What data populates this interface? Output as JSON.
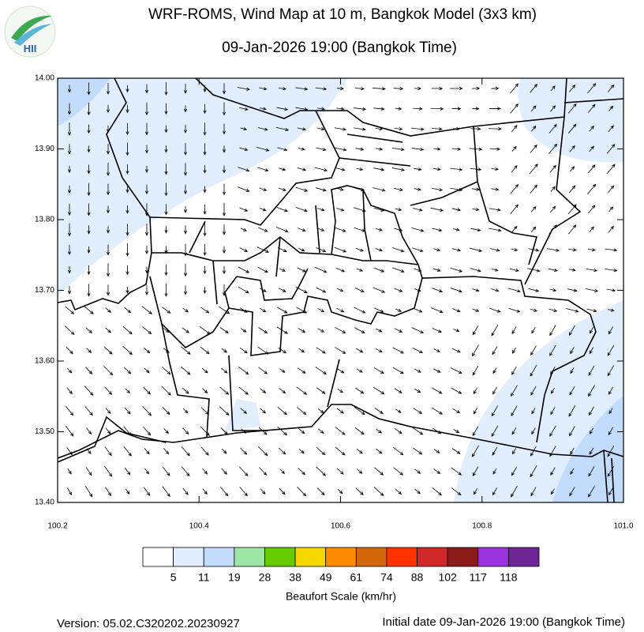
{
  "header": {
    "title": "WRF-ROMS, Wind Map at 10 m, Bangkok Model (3x3 km)",
    "subtitle": "09-Jan-2026 19:00 (Bangkok Time)",
    "logo": "HII"
  },
  "map": {
    "lon_ticks": [
      {
        "value": 100.2,
        "label": "100.2"
      },
      {
        "value": 100.4,
        "label": "100.4"
      },
      {
        "value": 100.6,
        "label": "100.6"
      },
      {
        "value": 100.8,
        "label": "100.8"
      },
      {
        "value": 101.0,
        "label": "101.0"
      }
    ],
    "lat_ticks": [
      {
        "value": 14.0,
        "label": "14.00"
      },
      {
        "value": 13.9,
        "label": "13.90"
      },
      {
        "value": 13.8,
        "label": "13.80"
      },
      {
        "value": 13.7,
        "label": "13.70"
      },
      {
        "value": 13.6,
        "label": "13.60"
      },
      {
        "value": 13.5,
        "label": "13.50"
      },
      {
        "value": 13.4,
        "label": "13.40"
      }
    ]
  },
  "legend": {
    "title": "Beaufort Scale (km/hr)",
    "colors": [
      "#ffffff",
      "#e1eefe",
      "#c4dcfc",
      "#9ee6a8",
      "#66cc00",
      "#f5d800",
      "#ff8c00",
      "#d2660a",
      "#ff3300",
      "#d02828",
      "#8b1a1a",
      "#9933dd",
      "#6e2596"
    ],
    "labels": [
      5,
      11,
      19,
      28,
      38,
      49,
      61,
      74,
      88,
      102,
      117,
      118
    ]
  },
  "footer": {
    "version": "Version: 05.02.C320202.20230927",
    "initial_date": "Initial date 09-Jan-2026 19:00 (Bangkok Time)"
  }
}
